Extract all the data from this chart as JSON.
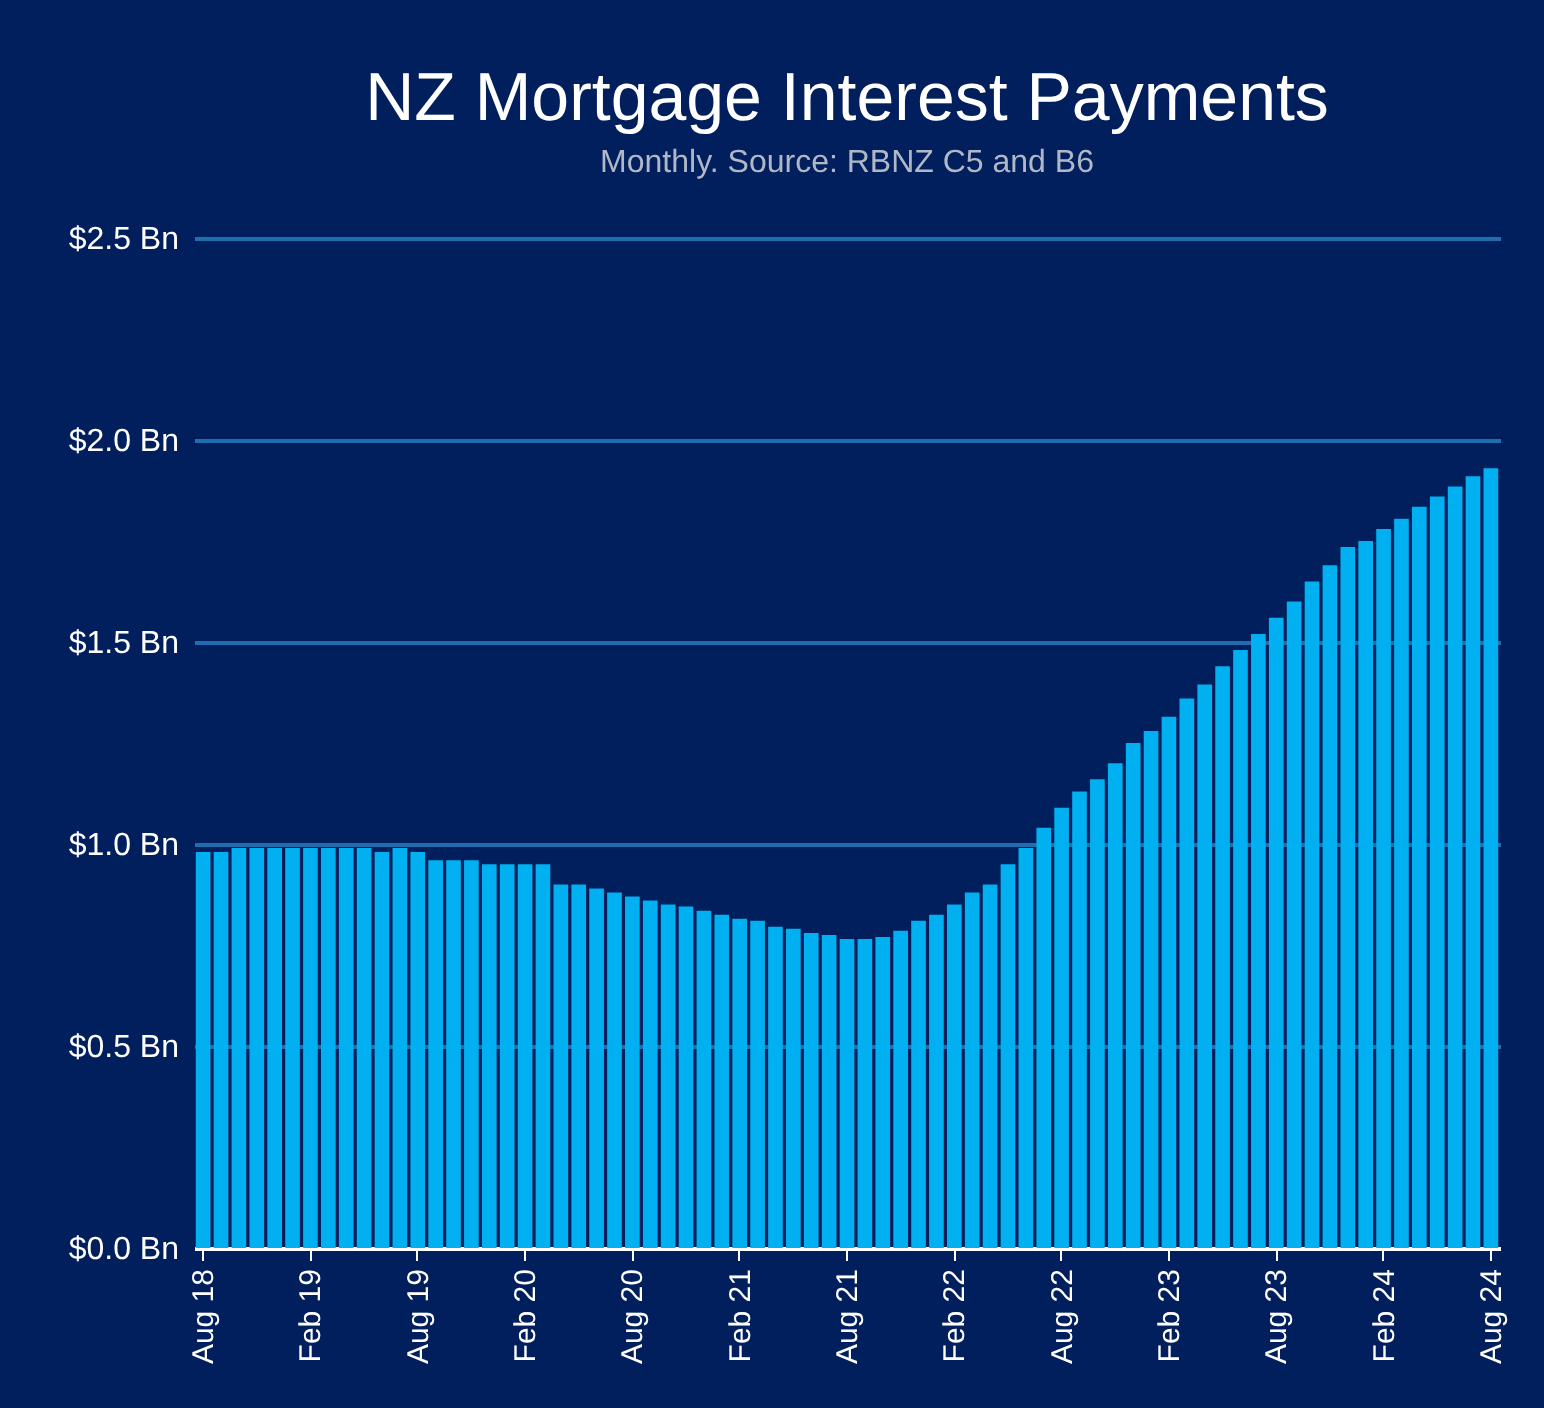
{
  "chart_data": {
    "type": "bar",
    "title": "NZ Mortgage Interest Payments",
    "subtitle": "Monthly. Source: RBNZ C5 and B6",
    "categories": [
      "Aug 18",
      null,
      null,
      null,
      null,
      null,
      "Feb 19",
      null,
      null,
      null,
      null,
      null,
      "Aug 19",
      null,
      null,
      null,
      null,
      null,
      "Feb 20",
      null,
      null,
      null,
      null,
      null,
      "Aug 20",
      null,
      null,
      null,
      null,
      null,
      "Feb 21",
      null,
      null,
      null,
      null,
      null,
      "Aug 21",
      null,
      null,
      null,
      null,
      null,
      "Feb 22",
      null,
      null,
      null,
      null,
      null,
      "Aug 22",
      null,
      null,
      null,
      null,
      null,
      "Feb 23",
      null,
      null,
      null,
      null,
      null,
      "Aug 23",
      null,
      null,
      null,
      null,
      null,
      "Feb 24",
      null,
      null,
      null,
      null,
      null,
      "Aug 24"
    ],
    "values": [
      0.98,
      0.98,
      0.99,
      0.99,
      0.99,
      0.99,
      0.99,
      0.99,
      0.99,
      0.99,
      0.98,
      0.99,
      0.98,
      0.96,
      0.96,
      0.96,
      0.95,
      0.95,
      0.95,
      0.95,
      0.9,
      0.9,
      0.89,
      0.88,
      0.87,
      0.86,
      0.85,
      0.845,
      0.835,
      0.825,
      0.815,
      0.81,
      0.795,
      0.79,
      0.78,
      0.775,
      0.765,
      0.765,
      0.77,
      0.785,
      0.81,
      0.825,
      0.85,
      0.88,
      0.9,
      0.95,
      0.99,
      1.04,
      1.09,
      1.13,
      1.16,
      1.2,
      1.25,
      1.28,
      1.315,
      1.36,
      1.395,
      1.44,
      1.48,
      1.52,
      1.56,
      1.6,
      1.65,
      1.69,
      1.735,
      1.75,
      1.78,
      1.805,
      1.835,
      1.86,
      1.885,
      1.91,
      1.93
    ],
    "color": "#00b0f0",
    "ylim": [
      0,
      2.5
    ],
    "yticks": [
      {
        "value": 0,
        "label": "$0.0 Bn"
      },
      {
        "value": 0.5,
        "label": "$0.5 Bn"
      },
      {
        "value": 1.0,
        "label": "$1.0 Bn"
      },
      {
        "value": 1.5,
        "label": "$1.5 Bn"
      },
      {
        "value": 2.0,
        "label": "$2.0 Bn"
      },
      {
        "value": 2.5,
        "label": "$2.5 Bn"
      }
    ],
    "grid": "y"
  }
}
